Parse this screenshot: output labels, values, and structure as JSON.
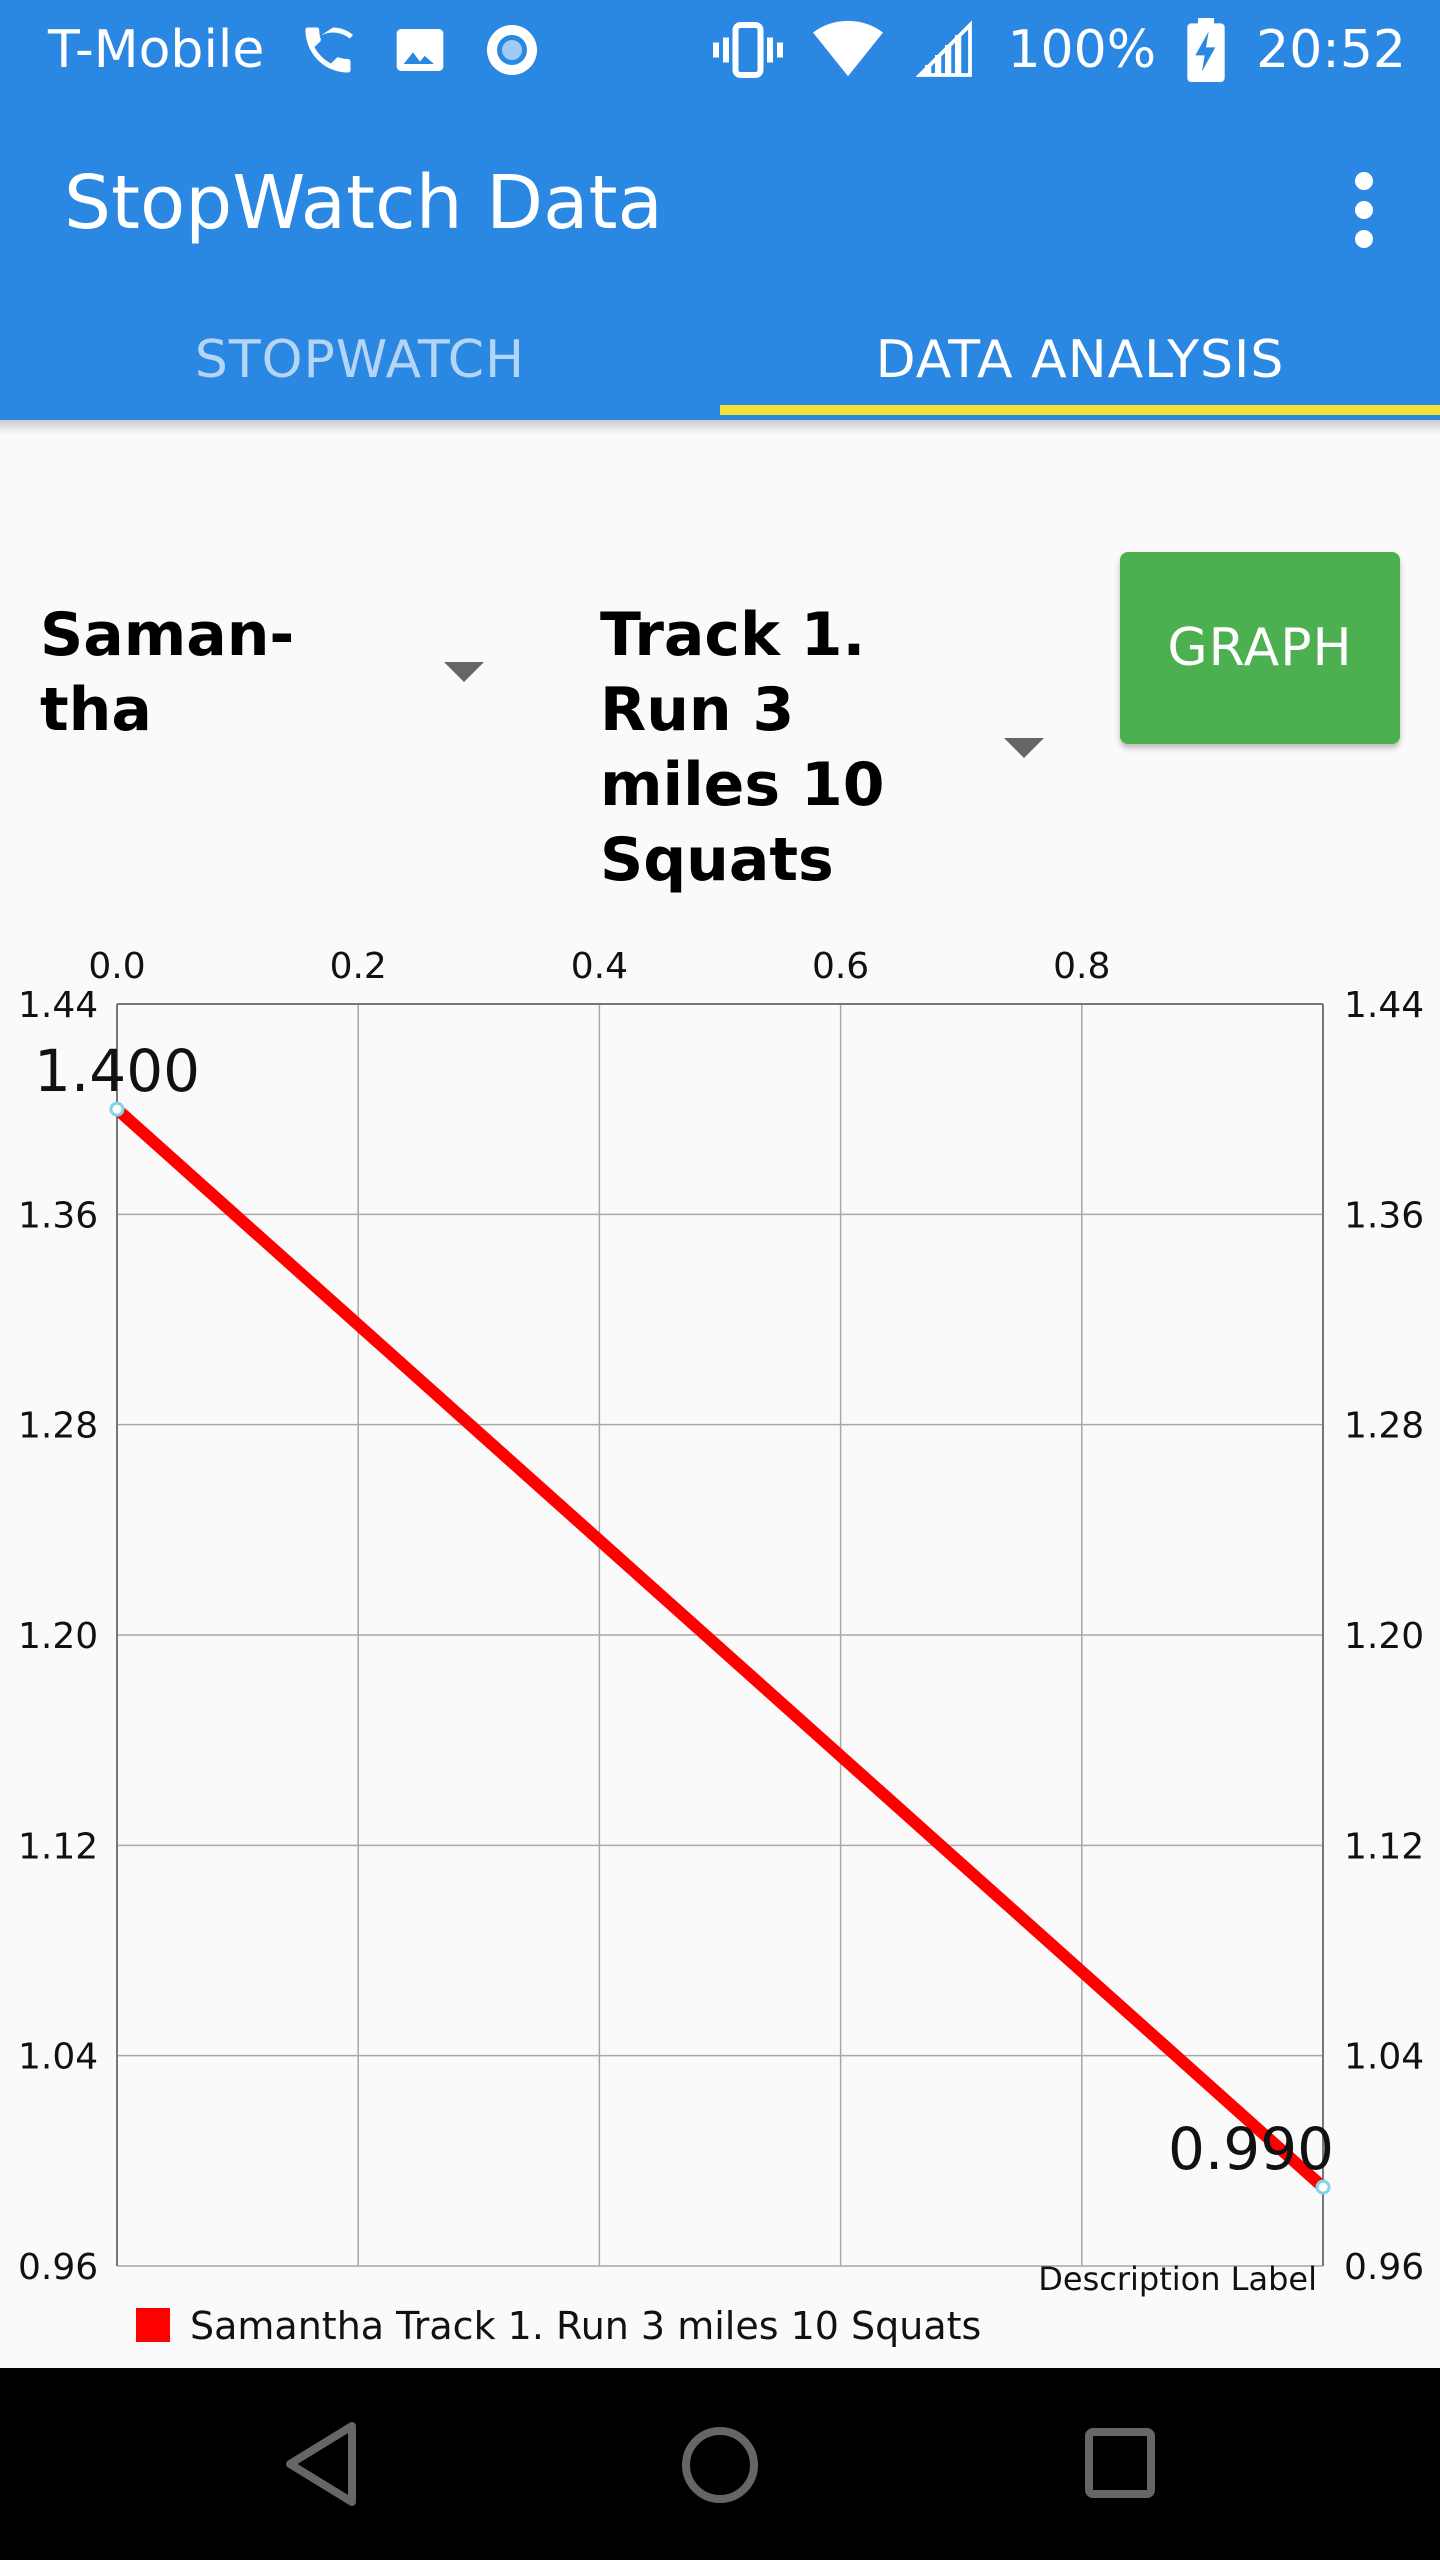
{
  "status_bar": {
    "carrier": "T-Mobile",
    "battery": "100%",
    "time": "20:52",
    "icons": [
      "wifi-calling-icon",
      "image-icon",
      "record-icon",
      "vibrate-icon",
      "wifi-icon",
      "signal-icon",
      "battery-charging-icon"
    ]
  },
  "app_bar": {
    "title": "StopWatch Data",
    "menu_icon": "more-vert-icon"
  },
  "tabs": [
    {
      "label": "STOPWATCH",
      "active": false
    },
    {
      "label": "DATA ANALYSIS",
      "active": true
    }
  ],
  "controls": {
    "person_select": {
      "value_lines": [
        "Saman-",
        "tha"
      ]
    },
    "track_select": {
      "value_lines": [
        "Track 1.",
        "Run 3",
        "miles 10",
        "Squats"
      ]
    },
    "graph_button": "GRAPH"
  },
  "colors": {
    "primary": "#2a88e2",
    "tab_indicator": "#f4e13b",
    "button": "#4caf50",
    "series": "#ff0000",
    "point": "#7fd4e8"
  },
  "chart_data": {
    "type": "line",
    "x_ticks": [
      "0.0",
      "0.2",
      "0.4",
      "0.6",
      "0.8"
    ],
    "y_ticks": [
      "1.44",
      "1.36",
      "1.28",
      "1.20",
      "1.12",
      "1.04",
      "0.96"
    ],
    "xlim": [
      0.0,
      1.0
    ],
    "ylim": [
      0.96,
      1.44
    ],
    "grid": true,
    "series": [
      {
        "name": "Samantha Track 1. Run 3 miles 10 Squats",
        "x": [
          0.0,
          1.0
        ],
        "y": [
          1.4,
          0.99
        ],
        "labels": [
          "1.400",
          "0.990"
        ]
      }
    ],
    "description": "Description Label",
    "legend_position": "bottom-left"
  },
  "nav_bar": {
    "icons": [
      "back-icon",
      "home-icon",
      "recents-icon"
    ]
  }
}
